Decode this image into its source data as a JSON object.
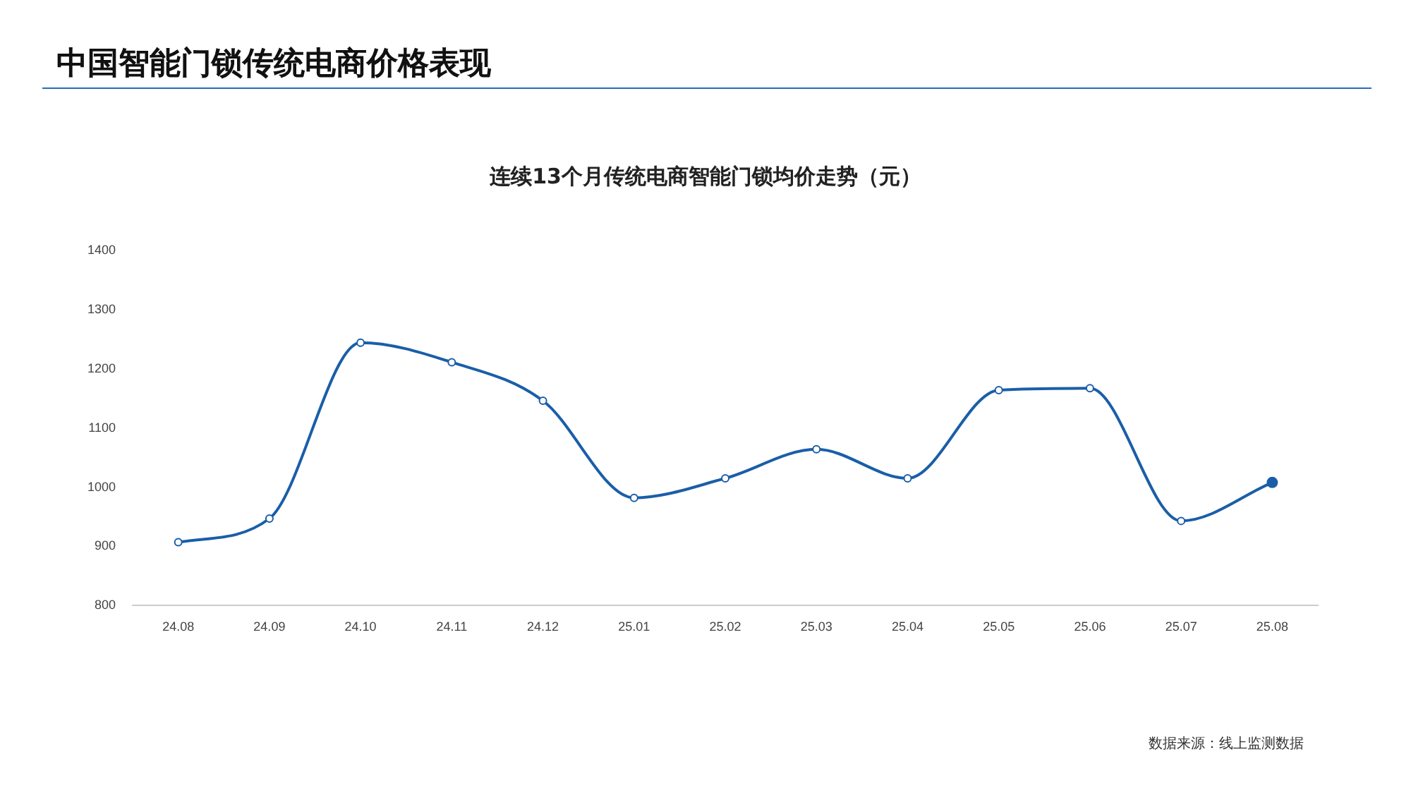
{
  "chart_data": {
    "type": "line",
    "title": "中国智能门锁传统电商价格表现",
    "subtitle": "连续13个月传统电商智能门锁均价走势（元）",
    "categories": [
      "24.08",
      "24.09",
      "24.10",
      "24.11",
      "24.12",
      "25.01",
      "25.02",
      "25.03",
      "25.04",
      "25.05",
      "25.06",
      "25.07",
      "25.08"
    ],
    "series": [
      {
        "color": "#1a5ea8",
        "values": [
          907,
          947,
          1244,
          1211,
          1146,
          982,
          1015,
          1064,
          1015,
          1164,
          1167,
          943,
          1008
        ]
      }
    ],
    "ylim": [
      800,
      1400
    ],
    "yticks": [
      800,
      900,
      1000,
      1100,
      1200,
      1300,
      1400
    ],
    "grid": false,
    "legend": false,
    "marker": "circle",
    "line_style": "solid",
    "annotations": [
      "数据来源：线上监测数据"
    ]
  }
}
